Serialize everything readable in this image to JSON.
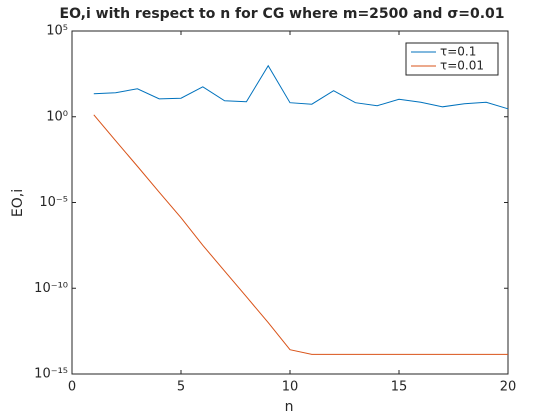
{
  "chart_data": {
    "type": "line",
    "title": "EO,i with respect to n for CG where m=2500 and σ=0.01",
    "xlabel": "n",
    "ylabel": "EO,i",
    "x": [
      1,
      2,
      3,
      4,
      5,
      6,
      7,
      8,
      9,
      10,
      11,
      12,
      13,
      14,
      15,
      16,
      17,
      18,
      19,
      20
    ],
    "series": [
      {
        "name": "τ=0.1",
        "color": "#0072bd",
        "values": [
          22,
          25,
          43,
          11,
          12,
          56,
          8.5,
          7.5,
          940,
          6.6,
          5.4,
          33,
          6.6,
          4.4,
          10.5,
          7,
          3.8,
          5.7,
          7,
          2.9
        ]
      },
      {
        "name": "τ=0.01",
        "color": "#d95319",
        "values": [
          1.3,
          0.04,
          0.0013,
          4e-05,
          1.3e-06,
          3.2e-08,
          1e-09,
          3.2e-11,
          1e-12,
          2.6e-14,
          1.4e-14,
          1.4e-14,
          1.4e-14,
          1.4e-14,
          1.4e-14,
          1.4e-14,
          1.4e-14,
          1.4e-14,
          1.4e-14,
          1.4e-14
        ]
      }
    ],
    "xlim": [
      0,
      20
    ],
    "xticks": [
      0,
      5,
      10,
      15,
      20
    ],
    "ylim": [
      1e-15,
      100000
    ],
    "ylog": true,
    "yticks": [
      {
        "value": 1e-15,
        "label": "10⁻¹⁵"
      },
      {
        "value": 1e-10,
        "label": "10⁻¹⁰"
      },
      {
        "value": 1e-05,
        "label": "10⁻⁵"
      },
      {
        "value": 1,
        "label": "10⁰"
      },
      {
        "value": 100000,
        "label": "10⁵"
      }
    ],
    "legend": "northeast",
    "grid": false
  }
}
